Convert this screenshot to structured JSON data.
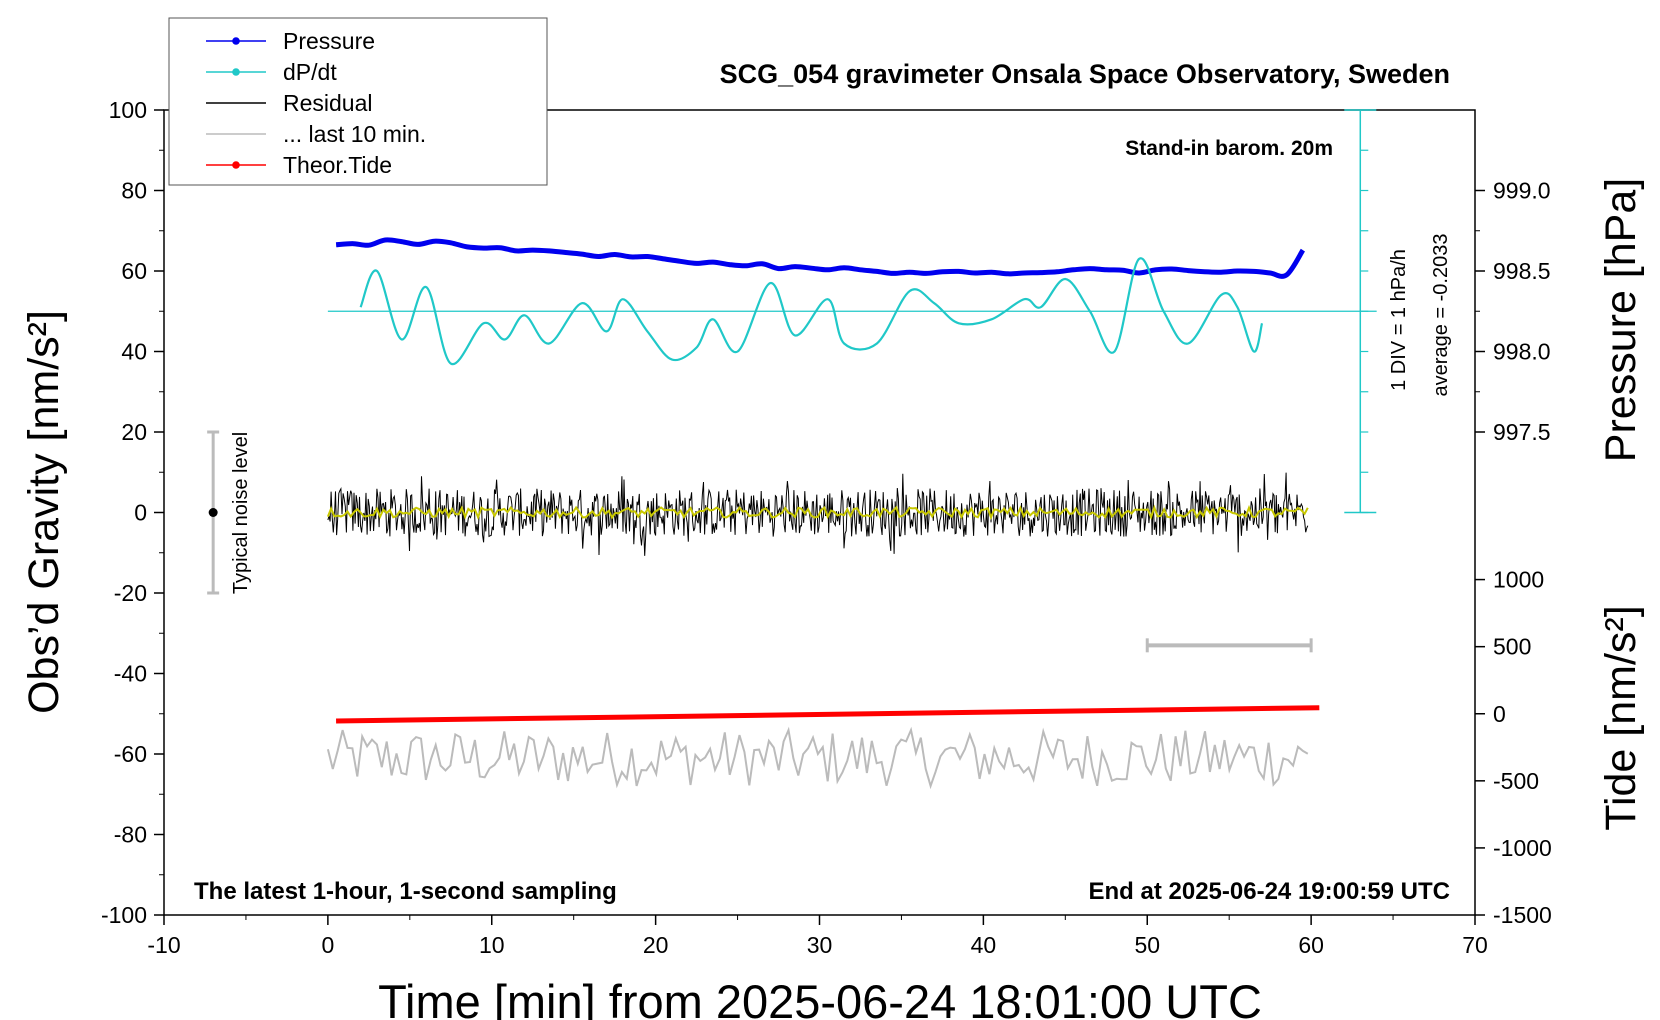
{
  "chart_data": {
    "type": "line",
    "title": "SCG_054 gravimeter Onsala Space Observatory, Sweden",
    "xlabel": "Time [min] from 2025-06-24 18:01:00 UTC",
    "ylabel_left": "Obs’d Gravity [nm/s²]",
    "ylabel_right_pressure": "Pressure [hPa]",
    "ylabel_right_tide": "Tide [nm/s²]",
    "xlim": [
      -10,
      70
    ],
    "ylim_left": [
      -100,
      100
    ],
    "xticks": [
      "-10",
      "0",
      "10",
      "20",
      "30",
      "40",
      "50",
      "60",
      "70"
    ],
    "yticks_left": [
      "100",
      "80",
      "60",
      "40",
      "20",
      "0",
      "-20",
      "-40",
      "-60",
      "-80",
      "-100"
    ],
    "pressure_ticks": [
      "999.0",
      "998.5",
      "998.0",
      "997.5"
    ],
    "tide_ticks": [
      "1000",
      "500",
      "0",
      "-500",
      "-1000",
      "-1500"
    ],
    "annotations": {
      "barometer": "Stand-in barom. 20m",
      "div": "1 DIV = 1 hPa/h",
      "average": "average = -0.2033",
      "noise": "Typical noise level",
      "bottom_left": "The latest 1-hour, 1-second sampling",
      "bottom_right": "End at 2025-06-24 19:00:59 UTC"
    },
    "legend": {
      "position": "top-left",
      "items": [
        {
          "label": "Pressure",
          "color": "#0000ee",
          "marker": true
        },
        {
          "label": "dP/dt",
          "color": "#20c8c8",
          "marker": true
        },
        {
          "label": "Residual",
          "color": "#000000",
          "marker": false
        },
        {
          "label": "... last 10 min.",
          "color": "#bbbbbb",
          "marker": false
        },
        {
          "label": "Theor.Tide",
          "color": "#ff0000",
          "marker": true
        }
      ]
    },
    "series": [
      {
        "name": "Pressure",
        "color": "#0000ee",
        "x": [
          0.5,
          1.5,
          2.5,
          3.5,
          4.5,
          5.5,
          6.5,
          7.5,
          8.5,
          9.5,
          10.5,
          11.5,
          12.5,
          13.5,
          14.5,
          15.5,
          16.5,
          17.5,
          18.5,
          19.5,
          20.5,
          21.5,
          22.5,
          23.5,
          24.5,
          25.5,
          26.5,
          27.5,
          28.5,
          29.5,
          30.5,
          31.5,
          32.5,
          33.5,
          34.5,
          35.5,
          36.5,
          37.5,
          38.5,
          39.5,
          40.5,
          41.5,
          42.5,
          43.5,
          44.5,
          45.5,
          46.5,
          47.5,
          48.5,
          49.5,
          50.5,
          51.5,
          52.5,
          53.5,
          54.5,
          55.5,
          56.5,
          57.5,
          58.5,
          59.5
        ],
        "y": [
          66.5,
          66.8,
          66.4,
          67.7,
          67.3,
          66.6,
          67.4,
          67.0,
          66.0,
          65.7,
          65.8,
          65.0,
          65.2,
          65.0,
          64.6,
          64.2,
          63.6,
          64.1,
          63.5,
          63.6,
          63.0,
          62.4,
          61.9,
          62.2,
          61.6,
          61.3,
          61.8,
          60.6,
          61.1,
          60.7,
          60.3,
          60.8,
          60.3,
          59.9,
          59.4,
          59.7,
          59.4,
          59.8,
          59.9,
          59.5,
          59.7,
          59.3,
          59.5,
          59.6,
          59.8,
          60.3,
          60.6,
          60.3,
          60.2,
          59.5,
          60.3,
          60.5,
          60.1,
          59.8,
          59.7,
          60.0,
          59.9,
          59.5,
          59.0,
          65.2
        ]
      },
      {
        "name": "dP/dt",
        "color": "#20c8c8",
        "x": [
          2,
          3,
          4.5,
          6,
          7.5,
          9.5,
          10.8,
          12,
          13.5,
          15.5,
          17,
          18,
          19.5,
          21,
          22.5,
          23.5,
          25,
          27,
          28.5,
          30.5,
          31.5,
          33.5,
          35.5,
          37,
          38.5,
          40.5,
          42.5,
          43.5,
          45,
          46.5,
          48,
          49.5,
          51,
          52.5,
          54.5,
          55.5,
          56.5,
          57
        ],
        "y": [
          51,
          60,
          43,
          56,
          37,
          47,
          43,
          49,
          42,
          52,
          45,
          53,
          45,
          38,
          41,
          48,
          40,
          57,
          44,
          53,
          42,
          42,
          55,
          52,
          47,
          48,
          53,
          51,
          58,
          50,
          40,
          63,
          50,
          42,
          54,
          51,
          40,
          47
        ]
      },
      {
        "name": "Theor.Tide",
        "color": "#ff0000",
        "x": [
          0.5,
          60.5
        ],
        "y": [
          -51.8,
          -48.5
        ]
      }
    ],
    "residual": {
      "x_range": [
        0,
        59.8
      ],
      "y_center": 0,
      "y_spread": 6
    },
    "last_10_min": {
      "x_range": [
        0,
        59.8
      ],
      "y_center": -61,
      "y_spread": 7
    },
    "noise_bar": {
      "x": -7,
      "y_center": 0,
      "y_low": -20,
      "y_high": 20
    },
    "scale_bar": {
      "x_from": 50,
      "x_to": 60,
      "y": -33
    },
    "dpdt_axis": {
      "x": 63,
      "y_from": 0,
      "y_to": 100,
      "baseline_y": 50
    }
  }
}
